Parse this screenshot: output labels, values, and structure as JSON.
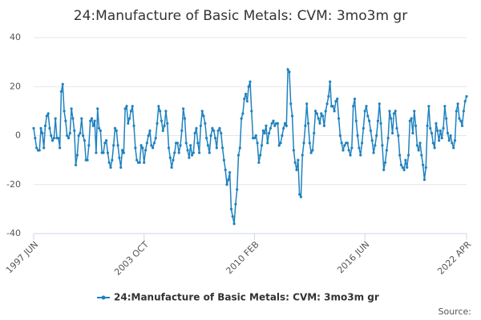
{
  "chart_data": {
    "type": "line",
    "title": "24:Manufacture of Basic Metals: CVM: 3mo3m gr",
    "source": "Source:",
    "x": [
      "1997-06",
      "1997-07",
      "1997-08",
      "1997-09",
      "1997-10",
      "1997-11",
      "1997-12",
      "1998-01",
      "1998-02",
      "1998-03",
      "1998-04",
      "1998-05",
      "1998-06",
      "1998-07",
      "1998-08",
      "1998-09",
      "1998-10",
      "1998-11",
      "1998-12",
      "1999-01",
      "1999-02",
      "1999-03",
      "1999-04",
      "1999-05",
      "1999-06",
      "1999-07",
      "1999-08",
      "1999-09",
      "1999-10",
      "1999-11",
      "1999-12",
      "2000-01",
      "2000-02",
      "2000-03",
      "2000-04",
      "2000-05",
      "2000-06",
      "2000-07",
      "2000-08",
      "2000-09",
      "2000-10",
      "2000-11",
      "2000-12",
      "2001-01",
      "2001-02",
      "2001-03",
      "2001-04",
      "2001-05",
      "2001-06",
      "2001-07",
      "2001-08",
      "2001-09",
      "2001-10",
      "2001-11",
      "2001-12",
      "2002-01",
      "2002-02",
      "2002-03",
      "2002-04",
      "2002-05",
      "2002-06",
      "2002-07",
      "2002-08",
      "2002-09",
      "2002-10",
      "2002-11",
      "2002-12",
      "2003-01",
      "2003-02",
      "2003-03",
      "2003-04",
      "2003-05",
      "2003-06",
      "2003-07",
      "2003-08",
      "2003-09",
      "2003-10",
      "2003-11",
      "2003-12",
      "2004-01",
      "2004-02",
      "2004-03",
      "2004-04",
      "2004-05",
      "2004-06",
      "2004-07",
      "2004-08",
      "2004-09",
      "2004-10",
      "2004-11",
      "2004-12",
      "2005-01",
      "2005-02",
      "2005-03",
      "2005-04",
      "2005-05",
      "2005-06",
      "2005-07",
      "2005-08",
      "2005-09",
      "2005-10",
      "2005-11",
      "2005-12",
      "2006-01",
      "2006-02",
      "2006-03",
      "2006-04",
      "2006-05",
      "2006-06",
      "2006-07",
      "2006-08",
      "2006-09",
      "2006-10",
      "2006-11",
      "2006-12",
      "2007-01",
      "2007-02",
      "2007-03",
      "2007-04",
      "2007-05",
      "2007-06",
      "2007-07",
      "2007-08",
      "2007-09",
      "2007-10",
      "2007-11",
      "2007-12",
      "2008-01",
      "2008-02",
      "2008-03",
      "2008-04",
      "2008-05",
      "2008-06",
      "2008-07",
      "2008-08",
      "2008-09",
      "2008-10",
      "2008-11",
      "2008-12",
      "2009-01",
      "2009-02",
      "2009-03",
      "2009-04",
      "2009-05",
      "2009-06",
      "2009-07",
      "2009-08",
      "2009-09",
      "2009-10",
      "2009-11",
      "2009-12",
      "2010-01",
      "2010-02",
      "2010-03",
      "2010-04",
      "2010-05",
      "2010-06",
      "2010-07",
      "2010-08",
      "2010-09",
      "2010-10",
      "2010-11",
      "2010-12",
      "2011-01",
      "2011-02",
      "2011-03",
      "2011-04",
      "2011-05",
      "2011-06",
      "2011-07",
      "2011-08",
      "2011-09",
      "2011-10",
      "2011-11",
      "2011-12",
      "2012-01",
      "2012-02",
      "2012-03",
      "2012-04",
      "2012-05",
      "2012-06",
      "2012-07",
      "2012-08",
      "2012-09",
      "2012-10",
      "2012-11",
      "2012-12",
      "2013-01",
      "2013-02",
      "2013-03",
      "2013-04",
      "2013-05",
      "2013-06",
      "2013-07",
      "2013-08",
      "2013-09",
      "2013-10",
      "2013-11",
      "2013-12",
      "2014-01",
      "2014-02",
      "2014-03",
      "2014-04",
      "2014-05",
      "2014-06",
      "2014-07",
      "2014-08",
      "2014-09",
      "2014-10",
      "2014-11",
      "2014-12",
      "2015-01",
      "2015-02",
      "2015-03",
      "2015-04",
      "2015-05",
      "2015-06",
      "2015-07",
      "2015-08",
      "2015-09",
      "2015-10",
      "2015-11",
      "2015-12",
      "2016-01",
      "2016-02",
      "2016-03",
      "2016-04",
      "2016-05",
      "2016-06",
      "2016-07",
      "2016-08",
      "2016-09",
      "2016-10",
      "2016-11",
      "2016-12",
      "2017-01",
      "2017-02",
      "2017-03",
      "2017-04",
      "2017-05",
      "2017-06",
      "2017-07",
      "2017-08",
      "2017-09",
      "2017-10",
      "2017-11",
      "2017-12",
      "2018-01",
      "2018-02",
      "2018-03",
      "2018-04",
      "2018-05",
      "2018-06",
      "2018-07",
      "2018-08",
      "2018-09",
      "2018-10",
      "2018-11",
      "2018-12",
      "2019-01",
      "2019-02",
      "2019-03",
      "2019-04",
      "2019-05",
      "2019-06",
      "2019-07",
      "2019-08",
      "2019-09",
      "2019-10",
      "2019-11",
      "2019-12",
      "2020-01",
      "2020-02",
      "2020-03",
      "2020-04",
      "2020-05",
      "2020-06",
      "2020-07",
      "2020-08",
      "2020-09",
      "2020-10",
      "2020-11",
      "2020-12",
      "2021-01",
      "2021-02",
      "2021-03",
      "2021-04",
      "2021-05",
      "2021-06",
      "2021-07",
      "2021-08",
      "2021-09",
      "2021-10",
      "2021-11",
      "2021-12",
      "2022-01",
      "2022-02",
      "2022-03",
      "2022-04"
    ],
    "series": [
      {
        "name": "24:Manufacture of Basic Metals: CVM: 3mo3m gr",
        "color": "#1f82bf",
        "values": [
          3,
          -1,
          -5,
          -6,
          -6,
          3,
          1,
          -5,
          4,
          8,
          9,
          3,
          0,
          -2,
          -1,
          7,
          -1,
          -1,
          -5,
          18,
          21,
          10,
          6,
          0,
          -1,
          1,
          11,
          7,
          2,
          -12,
          -8,
          0,
          1,
          7,
          0,
          -2,
          -10,
          -10,
          -4,
          6,
          7,
          4,
          6,
          -7,
          11,
          3,
          2,
          -7,
          -7,
          -3,
          -2,
          -7,
          -11,
          -13,
          -10,
          -4,
          3,
          2,
          -4,
          -9,
          -13,
          -6,
          -7,
          11,
          12,
          5,
          7,
          10,
          12,
          4,
          -5,
          -10,
          -11,
          -11,
          -4,
          -5,
          -11,
          -6,
          -3,
          0,
          2,
          -4,
          -5,
          -3,
          -1,
          5,
          12,
          10,
          6,
          2,
          4,
          10,
          5,
          -5,
          -9,
          -13,
          -10,
          -7,
          -3,
          -3,
          -7,
          -4,
          2,
          11,
          7,
          -3,
          -6,
          -9,
          -4,
          -8,
          -7,
          1,
          3,
          -3,
          -7,
          4,
          10,
          8,
          5,
          -1,
          -4,
          -7,
          0,
          3,
          2,
          -1,
          -5,
          2,
          3,
          1,
          -5,
          -10,
          -14,
          -20,
          -18,
          -15,
          -30,
          -33,
          -36,
          -28,
          -22,
          -8,
          -5,
          7,
          9,
          15,
          17,
          14,
          20,
          22,
          10,
          -1,
          -1,
          0,
          -3,
          -11,
          -8,
          -4,
          2,
          1,
          4,
          -3,
          1,
          3,
          5,
          6,
          4,
          5,
          5,
          -4,
          -3,
          0,
          3,
          5,
          4,
          27,
          26,
          13,
          8,
          -6,
          -11,
          -14,
          -10,
          -24,
          -25,
          -8,
          -3,
          4,
          13,
          5,
          -3,
          -7,
          -6,
          1,
          10,
          9,
          7,
          5,
          9,
          8,
          4,
          10,
          13,
          16,
          22,
          12,
          12,
          10,
          14,
          15,
          7,
          0,
          -3,
          -6,
          -4,
          -3,
          -3,
          -6,
          -8,
          -5,
          12,
          15,
          6,
          0,
          -5,
          -8,
          -3,
          3,
          10,
          12,
          8,
          6,
          2,
          -2,
          -7,
          -4,
          0,
          6,
          13,
          5,
          -4,
          -14,
          -11,
          -6,
          -1,
          10,
          7,
          1,
          9,
          10,
          3,
          0,
          -8,
          -12,
          -13,
          -14,
          -10,
          -13,
          -8,
          6,
          7,
          1,
          10,
          4,
          -4,
          -6,
          -3,
          -8,
          -12,
          -18,
          -13,
          4,
          12,
          3,
          1,
          -3,
          -5,
          5,
          2,
          -2,
          2,
          -1,
          3,
          12,
          7,
          1,
          -2,
          0,
          -3,
          -5,
          -2,
          10,
          13,
          7,
          6,
          4,
          10,
          14,
          16
        ]
      }
    ],
    "xlim": [
      "1997-06",
      "2022-04"
    ],
    "xticks": [
      {
        "value": "1997-06",
        "label": "1997 JUN"
      },
      {
        "value": "2003-10",
        "label": "2003 OCT"
      },
      {
        "value": "2010-02",
        "label": "2010 FEB"
      },
      {
        "value": "2016-06",
        "label": "2016 JUN"
      },
      {
        "value": "2022-04",
        "label": "2022 APR"
      }
    ],
    "ylim": [
      -40,
      40
    ],
    "yticks": [
      -40,
      -20,
      0,
      20,
      40
    ],
    "grid": true
  }
}
